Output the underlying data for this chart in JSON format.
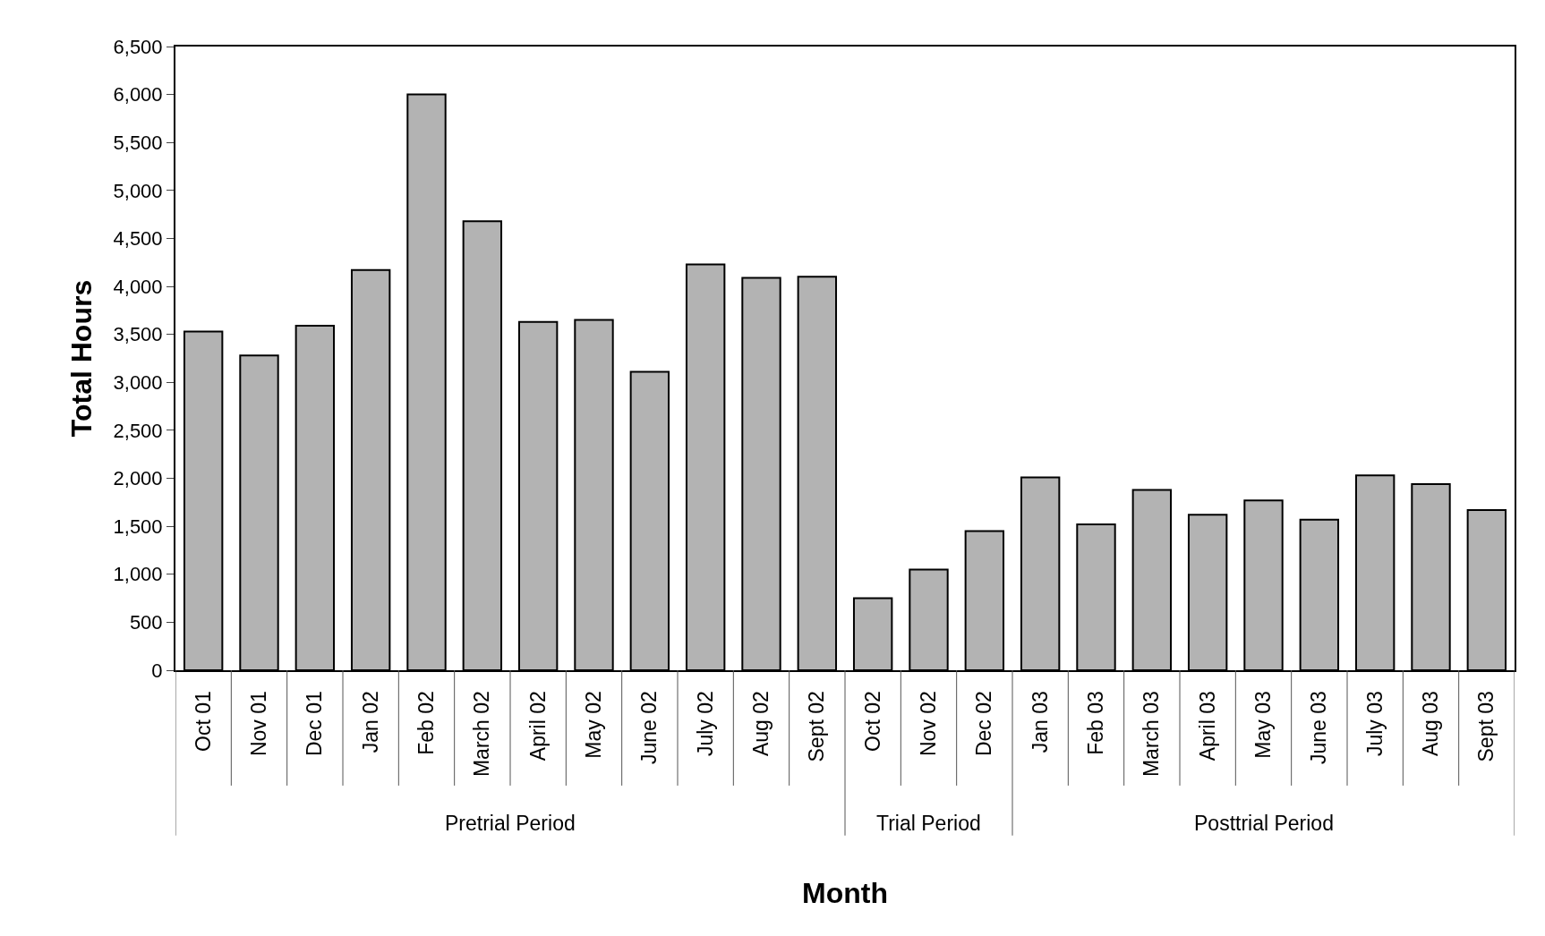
{
  "chart_data": {
    "type": "bar",
    "xlabel": "Month",
    "ylabel": "Total Hours",
    "categories": [
      "Oct 01",
      "Nov 01",
      "Dec 01",
      "Jan 02",
      "Feb 02",
      "March 02",
      "April 02",
      "May 02",
      "June 02",
      "July 02",
      "Aug 02",
      "Sept 02",
      "Oct 02",
      "Nov 02",
      "Dec 02",
      "Jan 03",
      "Feb 03",
      "March 03",
      "April 03",
      "May 03",
      "June 03",
      "July 03",
      "Aug 03",
      "Sept 03"
    ],
    "values": [
      3530,
      3280,
      3590,
      4170,
      6000,
      4680,
      3630,
      3650,
      3110,
      4230,
      4090,
      4100,
      750,
      1050,
      1450,
      2010,
      1520,
      1880,
      1620,
      1770,
      1570,
      2030,
      1940,
      1670
    ],
    "color": "#b3b3b3",
    "ylim": [
      0,
      6500
    ],
    "yticks": [
      {
        "value": 0,
        "label": "0"
      },
      {
        "value": 500,
        "label": "500"
      },
      {
        "value": 1000,
        "label": "1,000"
      },
      {
        "value": 1500,
        "label": "1,500"
      },
      {
        "value": 2000,
        "label": "2,000"
      },
      {
        "value": 2500,
        "label": "2,500"
      },
      {
        "value": 3000,
        "label": "3,000"
      },
      {
        "value": 3500,
        "label": "3,500"
      },
      {
        "value": 4000,
        "label": "4,000"
      },
      {
        "value": 4500,
        "label": "4,500"
      },
      {
        "value": 5000,
        "label": "5,000"
      },
      {
        "value": 5500,
        "label": "5,500"
      },
      {
        "value": 6000,
        "label": "6,000"
      },
      {
        "value": 6500,
        "label": "6,500"
      }
    ],
    "annotations": [
      "Pretrial Period",
      "Trial Period",
      "Posttrial Period"
    ],
    "grid": false
  }
}
